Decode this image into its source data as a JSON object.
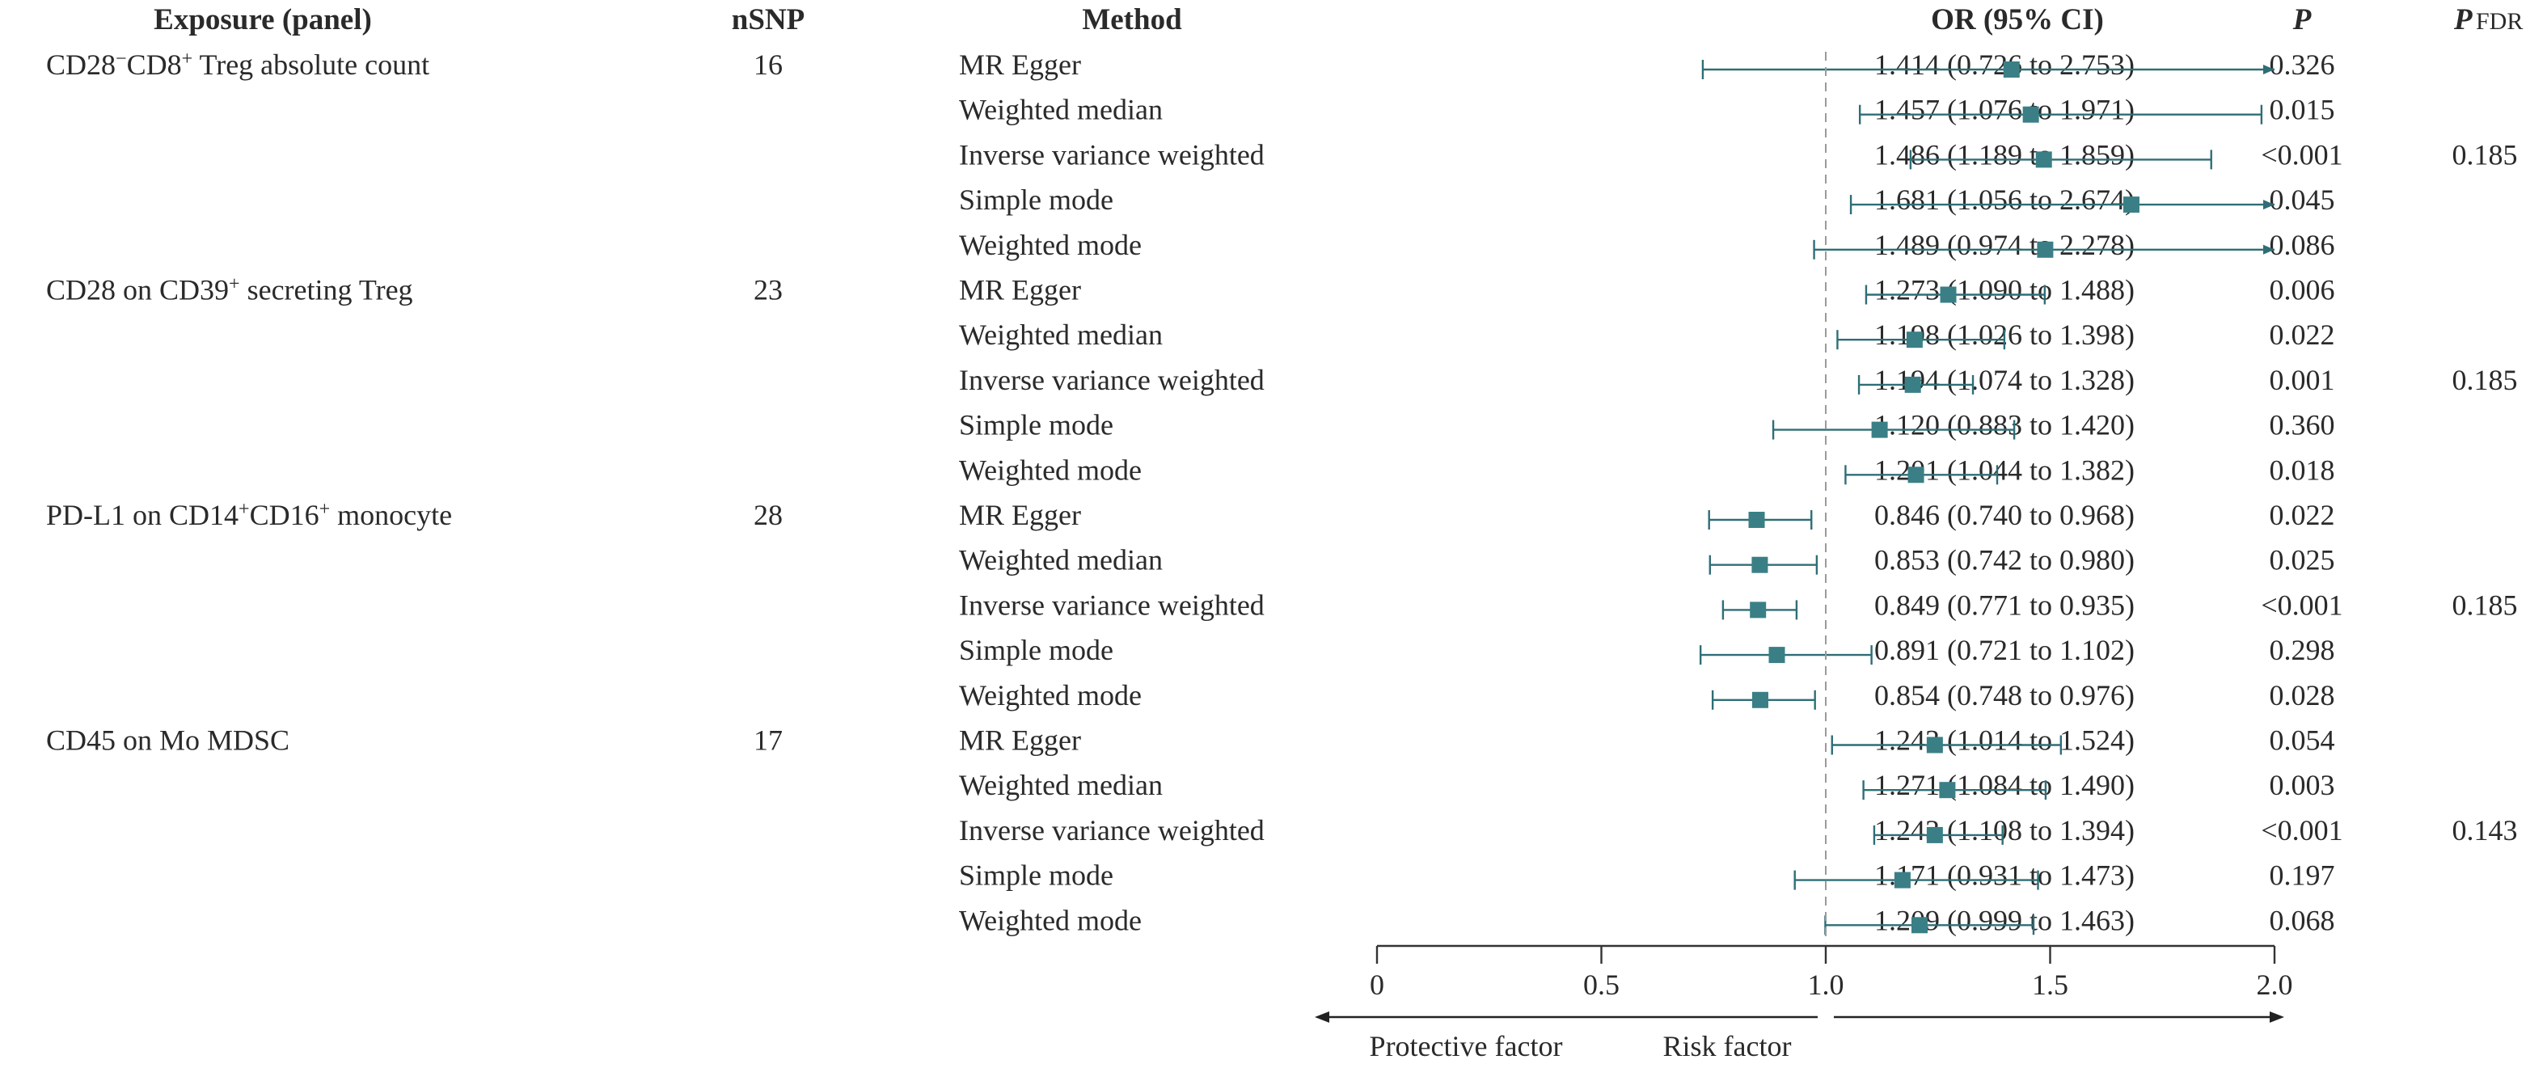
{
  "headers": {
    "exposure": "Exposure (panel)",
    "nsnp": "nSNP",
    "method": "Method",
    "or_ci": "OR (95% CI)",
    "p": "P",
    "pfdr_main": "P",
    "pfdr_sub": "FDR"
  },
  "exposures": [
    {
      "parts": [
        [
          "CD28",
          "n"
        ],
        [
          "−",
          "sup"
        ],
        [
          "CD8",
          "n"
        ],
        [
          "+",
          "sup"
        ],
        [
          " Treg absolute count",
          "n"
        ]
      ],
      "nsnp": "16"
    },
    {
      "parts": [
        [
          "CD28 on CD39",
          "n"
        ],
        [
          "+",
          "sup"
        ],
        [
          " secreting Treg",
          "n"
        ]
      ],
      "nsnp": "23"
    },
    {
      "parts": [
        [
          "PD-L1 on CD14",
          "n"
        ],
        [
          "+",
          "sup"
        ],
        [
          "CD16",
          "n"
        ],
        [
          "+",
          "sup"
        ],
        [
          " monocyte",
          "n"
        ]
      ],
      "nsnp": "28"
    },
    {
      "parts": [
        [
          "CD45 on Mo MDSC",
          "n"
        ]
      ],
      "nsnp": "17"
    }
  ],
  "chart_data": {
    "type": "forest",
    "methods": [
      "MR Egger",
      "Weighted median",
      "Inverse variance weighted",
      "Simple mode",
      "Weighted mode"
    ],
    "reference_line": 1.0,
    "xlim": [
      0,
      2.0
    ],
    "xticks": [
      0,
      0.5,
      1.0,
      1.5,
      2.0
    ],
    "xtick_labels": [
      "0",
      "0.5",
      "1.0",
      "1.5",
      "2.0"
    ],
    "direction_labels": {
      "left": "Protective factor",
      "right": "Risk factor"
    },
    "marker_color": "#3a7f86",
    "line_color": "#2e6e76",
    "rows": [
      {
        "group": 0,
        "method": "MR Egger",
        "or": 1.414,
        "lo": 0.726,
        "hi": 2.753,
        "or_text": "1.414 (0.726 to 2.753)",
        "p": "0.326",
        "pfdr": ""
      },
      {
        "group": 0,
        "method": "Weighted median",
        "or": 1.457,
        "lo": 1.076,
        "hi": 1.971,
        "or_text": "1.457 (1.076 to 1.971)",
        "p": "0.015",
        "pfdr": ""
      },
      {
        "group": 0,
        "method": "Inverse variance weighted",
        "or": 1.486,
        "lo": 1.189,
        "hi": 1.859,
        "or_text": "1.486 (1.189 to 1.859)",
        "p": "<0.001",
        "pfdr": "0.185"
      },
      {
        "group": 0,
        "method": "Simple mode",
        "or": 1.681,
        "lo": 1.056,
        "hi": 2.674,
        "or_text": "1.681 (1.056 to 2.674)",
        "p": "0.045",
        "pfdr": ""
      },
      {
        "group": 0,
        "method": "Weighted mode",
        "or": 1.489,
        "lo": 0.974,
        "hi": 2.278,
        "or_text": "1.489 (0.974 to 2.278)",
        "p": "0.086",
        "pfdr": ""
      },
      {
        "group": 1,
        "method": "MR Egger",
        "or": 1.273,
        "lo": 1.09,
        "hi": 1.488,
        "or_text": "1.273 (1.090 to 1.488)",
        "p": "0.006",
        "pfdr": ""
      },
      {
        "group": 1,
        "method": "Weighted median",
        "or": 1.198,
        "lo": 1.026,
        "hi": 1.398,
        "or_text": "1.198 (1.026 to 1.398)",
        "p": "0.022",
        "pfdr": ""
      },
      {
        "group": 1,
        "method": "Inverse variance weighted",
        "or": 1.194,
        "lo": 1.074,
        "hi": 1.328,
        "or_text": "1.194 (1.074 to 1.328)",
        "p": "0.001",
        "pfdr": "0.185"
      },
      {
        "group": 1,
        "method": "Simple mode",
        "or": 1.12,
        "lo": 0.883,
        "hi": 1.42,
        "or_text": "1.120 (0.883 to 1.420)",
        "p": "0.360",
        "pfdr": ""
      },
      {
        "group": 1,
        "method": "Weighted mode",
        "or": 1.201,
        "lo": 1.044,
        "hi": 1.382,
        "or_text": "1.201 (1.044 to 1.382)",
        "p": "0.018",
        "pfdr": ""
      },
      {
        "group": 2,
        "method": "MR Egger",
        "or": 0.846,
        "lo": 0.74,
        "hi": 0.968,
        "or_text": "0.846 (0.740 to 0.968)",
        "p": "0.022",
        "pfdr": ""
      },
      {
        "group": 2,
        "method": "Weighted median",
        "or": 0.853,
        "lo": 0.742,
        "hi": 0.98,
        "or_text": "0.853 (0.742 to 0.980)",
        "p": "0.025",
        "pfdr": ""
      },
      {
        "group": 2,
        "method": "Inverse variance weighted",
        "or": 0.849,
        "lo": 0.771,
        "hi": 0.935,
        "or_text": "0.849 (0.771 to 0.935)",
        "p": "<0.001",
        "pfdr": "0.185"
      },
      {
        "group": 2,
        "method": "Simple mode",
        "or": 0.891,
        "lo": 0.721,
        "hi": 1.102,
        "or_text": "0.891 (0.721 to 1.102)",
        "p": "0.298",
        "pfdr": ""
      },
      {
        "group": 2,
        "method": "Weighted mode",
        "or": 0.854,
        "lo": 0.748,
        "hi": 0.976,
        "or_text": "0.854 (0.748 to 0.976)",
        "p": "0.028",
        "pfdr": ""
      },
      {
        "group": 3,
        "method": "MR Egger",
        "or": 1.243,
        "lo": 1.014,
        "hi": 1.524,
        "or_text": "1.243 (1.014 to 1.524)",
        "p": "0.054",
        "pfdr": ""
      },
      {
        "group": 3,
        "method": "Weighted median",
        "or": 1.271,
        "lo": 1.084,
        "hi": 1.49,
        "or_text": "1.271 (1.084 to 1.490)",
        "p": "0.003",
        "pfdr": ""
      },
      {
        "group": 3,
        "method": "Inverse variance weighted",
        "or": 1.243,
        "lo": 1.108,
        "hi": 1.394,
        "or_text": "1.243 (1.108 to 1.394)",
        "p": "<0.001",
        "pfdr": "0.143"
      },
      {
        "group": 3,
        "method": "Simple mode",
        "or": 1.171,
        "lo": 0.931,
        "hi": 1.473,
        "or_text": "1.171 (0.931 to 1.473)",
        "p": "0.197",
        "pfdr": ""
      },
      {
        "group": 3,
        "method": "Weighted mode",
        "or": 1.209,
        "lo": 0.999,
        "hi": 1.463,
        "or_text": "1.209 (0.999 to 1.463)",
        "p": "0.068",
        "pfdr": ""
      }
    ]
  }
}
